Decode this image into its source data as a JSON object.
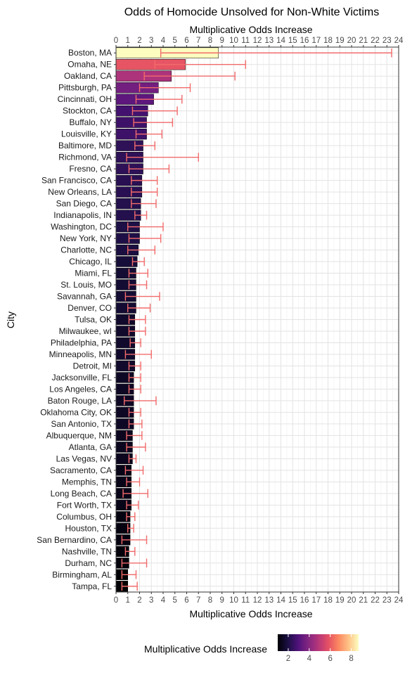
{
  "chart_data": {
    "type": "bar",
    "orientation": "horizontal",
    "title": "Odds of Homocide Unsolved for Non-White Victims",
    "xlabel": "Multiplicative Odds Increase",
    "x2label": "Multiplicative Odds Increase",
    "ylabel": "City",
    "xlim": [
      0,
      24
    ],
    "xticks": [
      0,
      1,
      2,
      3,
      4,
      5,
      6,
      7,
      8,
      9,
      10,
      11,
      12,
      13,
      14,
      15,
      16,
      17,
      18,
      19,
      20,
      21,
      22,
      23,
      24
    ],
    "grid": true,
    "errorbar_color": "#f26b6b",
    "categories": [
      "Boston, MA",
      "Omaha, NE",
      "Oakland, CA",
      "Pittsburgh, PA",
      "Cincinnati, OH",
      "Stockton, CA",
      "Buffalo, NY",
      "Louisville, KY",
      "Baltimore, MD",
      "Richmond, VA",
      "Fresno, CA",
      "San Francisco, CA",
      "New Orleans, LA",
      "San Diego, CA",
      "Indianapolis, IN",
      "Washington, DC",
      "New York, NY",
      "Charlotte, NC",
      "Chicago, IL",
      "Miami, FL",
      "St. Louis, MO",
      "Savannah, GA",
      "Denver, CO",
      "Tulsa, OK",
      "Milwaukee, wI",
      "Philadelphia, PA",
      "Minneapolis, MN",
      "Detroit, MI",
      "Jacksonville, FL",
      "Los Angeles, CA",
      "Baton Rouge, LA",
      "Oklahoma City, OK",
      "San Antonio, TX",
      "Albuquerque, NM",
      "Atlanta, GA",
      "Las Vegas, NV",
      "Sacramento, CA",
      "Memphis, TN",
      "Long Beach, CA",
      "Fort Worth, TX",
      "Columbus, OH",
      "Houston, TX",
      "San Bernardino, CA",
      "Nashville, TN",
      "Durham, NC",
      "Birmingham, AL",
      "Tampa, FL"
    ],
    "values": [
      8.7,
      5.9,
      4.7,
      3.6,
      3.2,
      2.7,
      2.6,
      2.6,
      2.3,
      2.3,
      2.3,
      2.2,
      2.2,
      2.1,
      2.1,
      2.0,
      2.0,
      1.9,
      1.8,
      1.7,
      1.7,
      1.7,
      1.7,
      1.6,
      1.6,
      1.6,
      1.6,
      1.6,
      1.5,
      1.5,
      1.5,
      1.5,
      1.5,
      1.4,
      1.4,
      1.4,
      1.3,
      1.3,
      1.3,
      1.3,
      1.2,
      1.2,
      1.2,
      1.1,
      1.1,
      1.0,
      1.0
    ],
    "ci_low": [
      3.8,
      3.3,
      2.4,
      2.0,
      1.7,
      1.4,
      1.5,
      1.7,
      1.6,
      0.9,
      1.1,
      1.3,
      1.3,
      1.3,
      1.6,
      1.0,
      1.1,
      1.0,
      1.4,
      1.1,
      1.1,
      0.8,
      1.0,
      1.1,
      1.1,
      1.2,
      0.8,
      1.1,
      1.1,
      1.1,
      0.7,
      1.1,
      1.1,
      0.9,
      0.9,
      1.1,
      0.8,
      0.9,
      0.6,
      0.9,
      0.9,
      1.0,
      0.5,
      0.8,
      0.5,
      0.5,
      0.5
    ],
    "ci_high": [
      23.4,
      11.0,
      10.1,
      6.3,
      5.6,
      5.2,
      4.8,
      3.9,
      3.3,
      7.0,
      4.5,
      3.5,
      3.5,
      3.4,
      2.6,
      4.0,
      3.8,
      3.3,
      2.4,
      2.7,
      2.6,
      3.7,
      2.9,
      2.5,
      2.5,
      2.1,
      3.0,
      2.1,
      2.1,
      2.1,
      3.4,
      2.1,
      2.2,
      2.2,
      2.5,
      1.7,
      2.3,
      2.0,
      2.7,
      1.9,
      1.6,
      1.5,
      2.6,
      1.6,
      2.6,
      1.7,
      1.8
    ],
    "colormap": "magma",
    "color_range": [
      1.0,
      8.7
    ],
    "legend": {
      "title": "Multiplicative Odds Increase",
      "placement": "bottom",
      "ticks": [
        2,
        4,
        6,
        8
      ]
    }
  }
}
